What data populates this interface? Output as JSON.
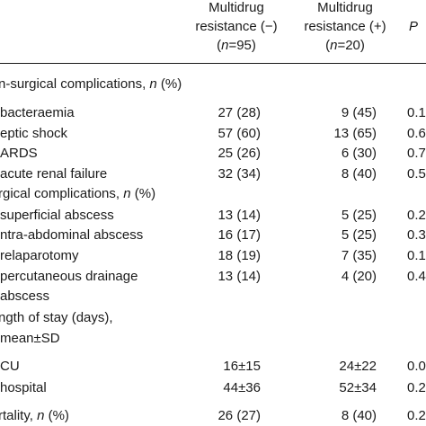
{
  "header": {
    "col1": {
      "line1": "Multidrug",
      "line2": "resistance (−)",
      "n_pre": "(",
      "n_var": "n",
      "n_post": "=95)"
    },
    "col2": {
      "line1": "Multidrug",
      "line2": "resistance (+)",
      "n_pre": "(",
      "n_var": "n",
      "n_post": "=20)"
    },
    "col3": {
      "line2": "P"
    }
  },
  "rows": [
    {
      "label": "n-surgical complications, ",
      "label_it": "n",
      "label_post": " (%)"
    },
    {
      "label": "bacteraemia",
      "c1": "27 (28)",
      "c2": "9 (45)",
      "c3": "0.1"
    },
    {
      "label": "eptic shock",
      "c1": "57 (60)",
      "c2": "13 (65)",
      "c3": "0.6"
    },
    {
      "label": "ARDS",
      "c1": "25 (26)",
      "c2": "6 (30)",
      "c3": "0.7"
    },
    {
      "label": "acute renal failure",
      "c1": "32 (34)",
      "c2": "8 (40)",
      "c3": "0.5"
    },
    {
      "label": "rgical complications, ",
      "label_it": "n",
      "label_post": " (%)"
    },
    {
      "label": "superficial abscess",
      "c1": "13 (14)",
      "c2": "5 (25)",
      "c3": "0.2"
    },
    {
      "label": "ntra-abdominal abscess",
      "c1": "16 (17)",
      "c2": "5 (25)",
      "c3": "0.3"
    },
    {
      "label": "relaparotomy",
      "c1": "18 (19)",
      "c2": "7 (35)",
      "c3": "0.1"
    },
    {
      "label": "percutaneous drainage",
      "c1": "13 (14)",
      "c2": "4 (20)",
      "c3": "0.4"
    },
    {
      "label": "abscess"
    },
    {
      "label": "ngth of stay (days),"
    },
    {
      "label": "mean±SD"
    },
    {
      "label": "CU",
      "c1": "16±15",
      "c2": "24±22",
      "c3": "0.0"
    },
    {
      "label": "hospital",
      "c1": "44±36",
      "c2": "52±34",
      "c3": "0.2"
    },
    {
      "label": "rtality, ",
      "label_it": "n",
      "label_post": " (%)",
      "c1": "26 (27)",
      "c2": "8 (40)",
      "c3": "0.2"
    }
  ]
}
